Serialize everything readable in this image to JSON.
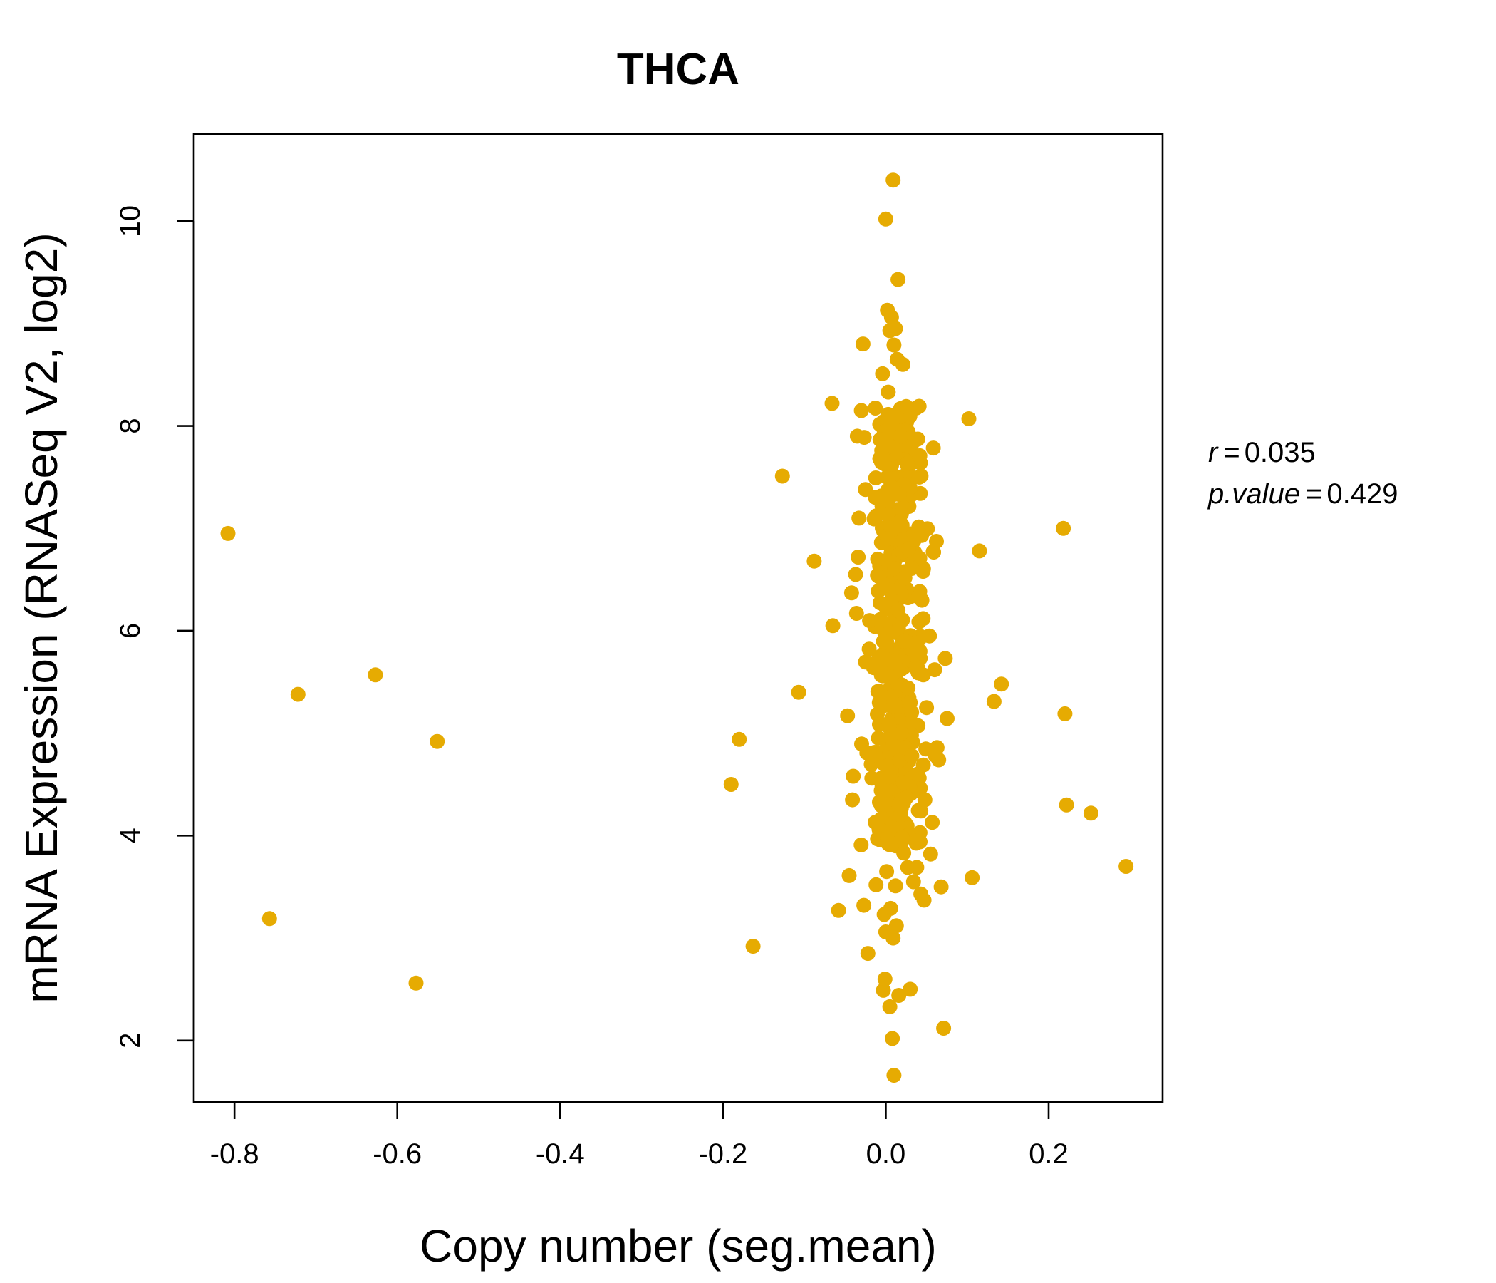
{
  "chart_data": {
    "type": "scatter",
    "title": "THCA",
    "xlabel": "Copy number (seg.mean)",
    "ylabel": "mRNA Expression (RNASeq V2, log2)",
    "xlim": [
      -0.85,
      0.34
    ],
    "ylim": [
      1.4,
      10.85
    ],
    "x_ticks": [
      -0.8,
      -0.6,
      -0.4,
      -0.2,
      0.0,
      0.2
    ],
    "x_tick_labels": [
      "-0.8",
      "-0.6",
      "-0.4",
      "-0.2",
      "0.0",
      "0.2"
    ],
    "y_ticks": [
      2,
      4,
      6,
      8,
      10
    ],
    "y_tick_labels": [
      "2",
      "4",
      "6",
      "8",
      "10"
    ],
    "grid": false,
    "legend": "none",
    "colors": {
      "points": "#E6AB02",
      "title": "#E6AB02",
      "axis": "#000000"
    },
    "annotations": [
      {
        "name": "r",
        "operator": "=",
        "value": "0.035"
      },
      {
        "name": "p.value",
        "operator": "=",
        "value": "0.429"
      }
    ],
    "series": [
      {
        "values_xy": [
          [
            -0.808,
            6.95
          ],
          [
            -0.757,
            3.19
          ],
          [
            -0.722,
            5.38
          ],
          [
            -0.627,
            5.57
          ],
          [
            -0.577,
            2.56
          ],
          [
            -0.551,
            4.92
          ],
          [
            -0.19,
            4.5
          ],
          [
            -0.18,
            4.94
          ],
          [
            -0.163,
            2.92
          ],
          [
            -0.127,
            7.51
          ],
          [
            -0.107,
            5.4
          ],
          [
            -0.088,
            6.68
          ],
          [
            -0.066,
            8.22
          ],
          [
            -0.065,
            6.05
          ],
          [
            -0.058,
            3.27
          ],
          [
            -0.047,
            5.17
          ],
          [
            -0.045,
            3.61
          ],
          [
            -0.042,
            6.37
          ],
          [
            -0.041,
            4.35
          ],
          [
            -0.04,
            4.58
          ],
          [
            -0.037,
            6.55
          ],
          [
            -0.036,
            6.17
          ],
          [
            -0.035,
            7.9
          ],
          [
            -0.034,
            6.72
          ],
          [
            -0.033,
            7.1
          ],
          [
            -0.03,
            8.15
          ],
          [
            -0.028,
            8.8
          ],
          [
            -0.027,
            3.32
          ],
          [
            -0.025,
            7.38
          ],
          [
            -0.022,
            2.85
          ],
          [
            -0.02,
            6.1
          ],
          [
            -0.018,
            4.78
          ],
          [
            -0.015,
            5.64
          ],
          [
            -0.013,
            4.13
          ],
          [
            -0.012,
            3.52
          ],
          [
            -0.01,
            6.7
          ],
          [
            -0.008,
            5.3
          ],
          [
            -0.006,
            4.56
          ],
          [
            -0.005,
            7.76
          ],
          [
            -0.004,
            8.51
          ],
          [
            -0.003,
            2.49
          ],
          [
            -0.002,
            3.23
          ],
          [
            -0.001,
            2.6
          ],
          [
            0.0,
            10.02
          ],
          [
            0.0,
            3.06
          ],
          [
            0.001,
            3.65
          ],
          [
            0.002,
            9.13
          ],
          [
            0.002,
            6.9
          ],
          [
            0.003,
            8.33
          ],
          [
            0.004,
            5.1
          ],
          [
            0.004,
            4.3
          ],
          [
            0.005,
            8.93
          ],
          [
            0.005,
            2.33
          ],
          [
            0.006,
            3.29
          ],
          [
            0.006,
            6.4
          ],
          [
            0.007,
            9.06
          ],
          [
            0.007,
            8.02
          ],
          [
            0.008,
            2.02
          ],
          [
            0.008,
            7.4
          ],
          [
            0.009,
            3.0
          ],
          [
            0.009,
            4.9
          ],
          [
            0.009,
            10.4
          ],
          [
            0.01,
            1.66
          ],
          [
            0.01,
            8.79
          ],
          [
            0.011,
            5.7
          ],
          [
            0.012,
            8.95
          ],
          [
            0.012,
            3.51
          ],
          [
            0.013,
            3.12
          ],
          [
            0.014,
            8.65
          ],
          [
            0.015,
            6.2
          ],
          [
            0.015,
            9.43
          ],
          [
            0.016,
            2.44
          ],
          [
            0.016,
            4.3
          ],
          [
            0.018,
            7.9
          ],
          [
            0.019,
            5.0
          ],
          [
            0.02,
            3.98
          ],
          [
            0.021,
            8.6
          ],
          [
            0.022,
            3.83
          ],
          [
            0.023,
            5.9
          ],
          [
            0.025,
            8.19
          ],
          [
            0.025,
            4.37
          ],
          [
            0.026,
            7.63
          ],
          [
            0.027,
            3.69
          ],
          [
            0.028,
            6.8
          ],
          [
            0.03,
            2.5
          ],
          [
            0.03,
            5.3
          ],
          [
            0.032,
            4.78
          ],
          [
            0.034,
            3.55
          ],
          [
            0.036,
            5.88
          ],
          [
            0.038,
            3.69
          ],
          [
            0.039,
            4.6
          ],
          [
            0.04,
            3.95
          ],
          [
            0.041,
            7.5
          ],
          [
            0.042,
            5.8
          ],
          [
            0.043,
            3.43
          ],
          [
            0.044,
            6.93
          ],
          [
            0.046,
            5.57
          ],
          [
            0.047,
            3.37
          ],
          [
            0.048,
            4.35
          ],
          [
            0.05,
            5.25
          ],
          [
            0.055,
            3.82
          ],
          [
            0.057,
            4.13
          ],
          [
            0.06,
            5.62
          ],
          [
            0.063,
            4.86
          ],
          [
            0.065,
            4.74
          ],
          [
            0.068,
            3.5
          ],
          [
            0.071,
            2.12
          ],
          [
            0.073,
            5.73
          ],
          [
            0.102,
            8.07
          ],
          [
            0.106,
            3.59
          ],
          [
            0.115,
            6.78
          ],
          [
            0.133,
            5.31
          ],
          [
            0.142,
            5.48
          ],
          [
            0.218,
            7.0
          ],
          [
            0.22,
            5.19
          ],
          [
            0.222,
            4.3
          ],
          [
            0.252,
            4.22
          ],
          [
            0.295,
            3.7
          ]
        ],
        "cluster": {
          "x_center": 0.013,
          "x_spread": 0.016,
          "y_min": 3.9,
          "y_max": 8.2,
          "count": 420
        }
      }
    ]
  }
}
